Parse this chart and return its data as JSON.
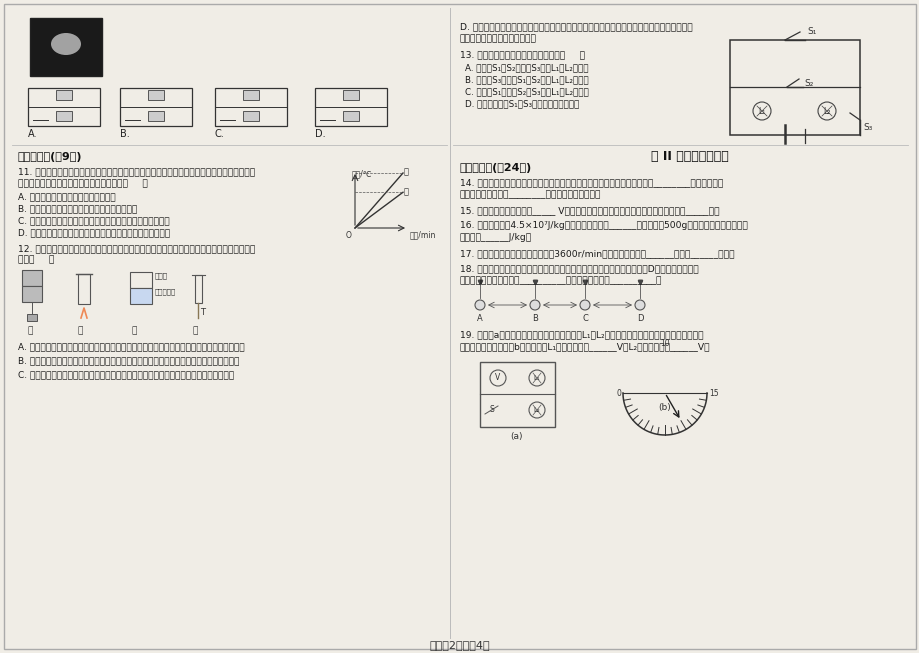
{
  "bg_color": "#e8e6e0",
  "page_bg": "#f0ede6",
  "title_bottom": "答案刄2页，兲4页",
  "section2_title": "二、多选题(兲9分)",
  "section3_title": "三、填空题(兲24分)",
  "part2_title": "第 II 卷（非选择题）",
  "q11_text": "11. 两个相同的容器分别装满了质量相等的甲、乙两种液体，用同一热源分别加热，液体温度与",
  "q11_text2": "加热时间关系如图所示，下列说法正确的是（     ）",
  "q11_A": "A. 甲液体的比热容小于乙液体的比热容",
  "q11_B": "B. 如果升高相同的温度，两液体吸收的热量相同",
  "q11_C": "C. 加热相同的时间，甲液体吸收的热量大于乙液体吸收的热量",
  "q11_D": "D. 加热相同的时间，甲液体温度升高的比乙液体温度升高的多",
  "q12_text": "12. 如图所示的装置展示的实验情景中，通过发生的现象，能说明一些物理知识，下列说法正确",
  "q12_text2": "的是（     ）",
  "q12_A": "A. 在甲图中，压紧的两鰛块，下面悬挂相同的砲码不分开，说明此时鰛块分子之间只存在引力",
  "q12_B": "B. 在乙图中，试管内的水汸腾后，水蔯气将软木塞推出，水蔯气内能转化为软木塞的机械能",
  "q12_C": "C. 在丙图中，抽去玻璃隔板后，两瓶中的气体逐渐混合，这说明上面瓶中的空气密度较大",
  "q13_options": "13. 对如图所示电路的分析，正确的是（     ）",
  "q13_A": "A. 当断开S₁、S₂，闭合S₃时，L₁与L₂为并联",
  "q13_B": "B. 当断开S₃，闭合S₁、S₂时，L₁与L₂为并联",
  "q13_C": "C. 当断开S₁，闭合S₂、S₃时，L₁与L₂为串联",
  "q13_D": "D. 只要同时闭合S₁、S₃，就会出现短路现象",
  "q14_text": "14. 「摩手可热」与「钒木取火」，从物体内能改变的方式来说，前者是通过________方式改变物体",
  "q14_text2": "的内能；后者是通过________方式改变物体的内能。",
  "q15_text": "15. 我国家庭电路的电压为_____ V，各班教室内的有线扬声器（广播）的连接方式是_____联。",
  "q16_text": "16. 汽油的热値是4.5×10⁷J/kg，它的物理意义是______，现有汽油500g，若燃烧一半，剩余汽油",
  "q16_text2": "的热値是______J/kg。",
  "q17_text": "17. 一台四冲程的汽油机飞轮的转数3600r/min，则每秒活塞来回______次，做______次功。",
  "q18_text": "18. 如图所示，为四个用细线悬挂的橡皮塑料小球之间相互作用的情况，若D球带负电，另外三",
  "q18_text2": "个球中，一定带正电的是__________；可能不带电的是__________。",
  "q19_text": "19. 如图（a）所示电路，当闭合开关后，灯泡L₁和L₂都发光，这时两只电压表的指针偏转角度",
  "q19_text2": "相同，指针位置为图（b）所示，则L₁两端的电压为______V，L₂两端的电压为______V。",
  "qD_text": "D. 在丁图中，金属管装有少量乙醚，迅速拉动缠在金属管外的皮绳，可使橡皮塞从管口飞出，",
  "qD_text2": "说明外力做功使乙醚内能增加了"
}
